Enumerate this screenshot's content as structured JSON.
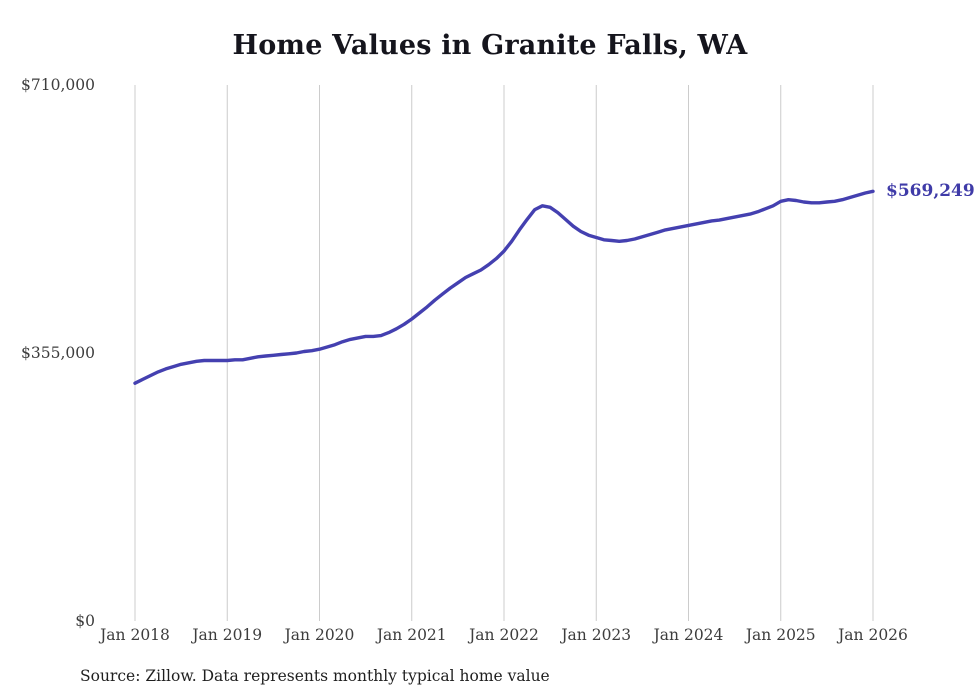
{
  "chart_data": {
    "type": "line",
    "title": "Home Values in Granite Falls, WA",
    "xlabel": "",
    "ylabel": "",
    "ylim": [
      0,
      710000
    ],
    "grid": "vertical-only",
    "legend": "none",
    "line_color": "#4440b0",
    "gridline_color": "#cccccc",
    "x_tick_labels": [
      "Jan 2018",
      "Jan 2019",
      "Jan 2020",
      "Jan 2021",
      "Jan 2022",
      "Jan 2023",
      "Jan 2024",
      "Jan 2025",
      "Jan 2026"
    ],
    "y_ticks": [
      {
        "label": "$0",
        "value": 0
      },
      {
        "label": "$355,000",
        "value": 355000
      },
      {
        "label": "$710,000",
        "value": 710000
      }
    ],
    "x_frequency": "monthly",
    "x_range": [
      "Jan 2018",
      "Jan 2026"
    ],
    "series": [
      {
        "name": "Monthly typical home value",
        "values": [
          315000,
          320000,
          325000,
          330000,
          334000,
          337000,
          340000,
          342000,
          344000,
          345000,
          345000,
          345000,
          345000,
          346000,
          346000,
          348000,
          350000,
          351000,
          352000,
          353000,
          354000,
          355000,
          357000,
          358000,
          360000,
          363000,
          366000,
          370000,
          373000,
          375000,
          377000,
          377000,
          378000,
          382000,
          387000,
          393000,
          400000,
          408000,
          416000,
          425000,
          433000,
          441000,
          448000,
          455000,
          460000,
          465000,
          472000,
          480000,
          490000,
          503000,
          518000,
          532000,
          545000,
          550000,
          548000,
          541000,
          532000,
          523000,
          516000,
          511000,
          508000,
          505000,
          504000,
          503000,
          504000,
          506000,
          509000,
          512000,
          515000,
          518000,
          520000,
          522000,
          524000,
          526000,
          528000,
          530000,
          531000,
          533000,
          535000,
          537000,
          539000,
          542000,
          546000,
          550000,
          556000,
          558000,
          557000,
          555000,
          554000,
          554000,
          555000,
          556000,
          558000,
          561000,
          564000,
          567000,
          569249
        ]
      }
    ],
    "end_label": "$569,249",
    "end_value": 569249,
    "source_note": "Source: Zillow. Data represents monthly typical home value"
  }
}
